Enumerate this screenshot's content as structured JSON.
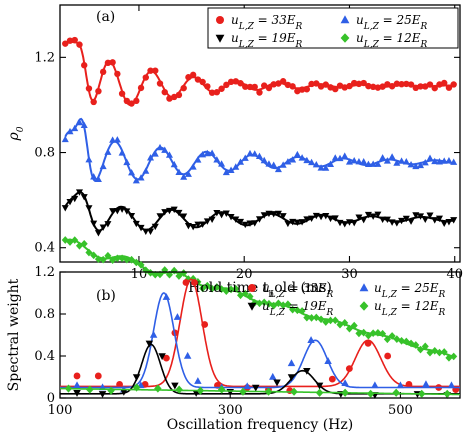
{
  "colors": {
    "red": "#e8201c",
    "blue": "#2f5fe6",
    "black": "#000000",
    "green": "#37c22a"
  },
  "legend_labels": {
    "u33": "u_{L,Z} = 33E_R",
    "u25": "u_{L,Z} = 25E_R",
    "u19": "u_{L,Z} = 19E_R",
    "u12": "u_{L,Z} = 12E_R"
  },
  "chart_data": [
    {
      "type": "scatter",
      "panel_label": "(a)",
      "xlabel": "Hold time t_hold (ms)",
      "ylabel": "ρ_0",
      "xlim": [
        2.5,
        40.5
      ],
      "ylim": [
        0.34,
        1.42
      ],
      "xticks": [
        10,
        20,
        30,
        40
      ],
      "yticks": [
        0.4,
        0.8,
        1.2
      ],
      "ytick_labels": [
        "0.4",
        "0.8",
        "1.2"
      ],
      "legend_position": "top-right",
      "series": [
        {
          "name": "u_{L,Z} = 33E_R",
          "marker": "circle",
          "color": "red",
          "model": {
            "base": 1.08,
            "amp": 0.2,
            "freq": 0.25,
            "phase": 1.2,
            "decay": 0.13,
            "bump": 0.22,
            "bump_x": 4.6,
            "bump_w": 0.8
          }
        },
        {
          "name": "u_{L,Z} = 25E_R",
          "marker": "triangle-up",
          "color": "blue",
          "model": {
            "base": 0.76,
            "amp": 0.14,
            "freq": 0.23,
            "phase": 1.0,
            "decay": 0.08,
            "bump": 0.2,
            "bump_x": 4.7,
            "bump_w": 0.7
          }
        },
        {
          "name": "u_{L,Z} = 19E_R",
          "marker": "triangle-down",
          "color": "black",
          "model": {
            "base": 0.52,
            "amp": 0.08,
            "freq": 0.21,
            "phase": 0.8,
            "decay": 0.06,
            "bump": 0.1,
            "bump_x": 4.8,
            "bump_w": 0.9
          }
        },
        {
          "name": "u_{L,Z} = 12E_R",
          "marker": "diamond",
          "color": "green",
          "model": {
            "base": 0.42,
            "amp": 0.025,
            "freq": 0.2,
            "phase": 0.5,
            "decay": 0.05,
            "bump": 0.0,
            "bump_x": 5,
            "bump_w": 1,
            "slope": -0.0013
          }
        }
      ]
    },
    {
      "type": "scatter",
      "panel_label": "(b)",
      "xlabel": "Oscillation frequency (Hz)",
      "ylabel": "Spectral weight",
      "xlim": [
        100,
        570
      ],
      "ylim": [
        0,
        1.2
      ],
      "xticks": [
        100,
        300,
        500
      ],
      "yticks": [
        0,
        0.4,
        0.8,
        1.2
      ],
      "ytick_labels": [
        "0",
        "0.4",
        "0.8",
        "1.2"
      ],
      "legend_position": "top-right",
      "series": [
        {
          "name": "u_{L,Z} = 33E_R",
          "marker": "circle",
          "color": "red",
          "points": [
            [
              120,
              0.21
            ],
            [
              145,
              0.21
            ],
            [
              170,
              0.13
            ],
            [
              200,
              0.13
            ],
            [
              225,
              0.38
            ],
            [
              235,
              0.62
            ],
            [
              248,
              1.1
            ],
            [
              258,
              1.1
            ],
            [
              270,
              0.7
            ],
            [
              285,
              0.12
            ],
            [
              320,
              0.1
            ],
            [
              345,
              0.08
            ],
            [
              370,
              0.07
            ],
            [
              420,
              0.18
            ],
            [
              440,
              0.28
            ],
            [
              462,
              0.52
            ],
            [
              485,
              0.4
            ],
            [
              510,
              0.13
            ],
            [
              545,
              0.1
            ],
            [
              565,
              0.08
            ]
          ],
          "fit": [
            {
              "a": 1.02,
              "mu": 254,
              "sigma": 13
            },
            {
              "a": 0.44,
              "mu": 462,
              "sigma": 15
            }
          ],
          "fit_base": 0.11
        },
        {
          "name": "u_{L,Z} = 25E_R",
          "marker": "triangle-up",
          "color": "blue",
          "points": [
            [
              120,
              0.12
            ],
            [
              150,
              0.1
            ],
            [
              175,
              0.08
            ],
            [
              195,
              0.12
            ],
            [
              210,
              0.6
            ],
            [
              225,
              0.96
            ],
            [
              238,
              0.77
            ],
            [
              250,
              0.4
            ],
            [
              262,
              0.16
            ],
            [
              290,
              0.1
            ],
            [
              320,
              0.11
            ],
            [
              350,
              0.2
            ],
            [
              372,
              0.33
            ],
            [
              395,
              0.55
            ],
            [
              415,
              0.35
            ],
            [
              435,
              0.14
            ],
            [
              470,
              0.12
            ],
            [
              500,
              0.12
            ],
            [
              530,
              0.13
            ],
            [
              560,
              0.12
            ]
          ],
          "fit": [
            {
              "a": 0.9,
              "mu": 222,
              "sigma": 12
            },
            {
              "a": 0.45,
              "mu": 400,
              "sigma": 14
            }
          ],
          "fit_base": 0.1
        },
        {
          "name": "u_{L,Z} = 19E_R",
          "marker": "triangle-down",
          "color": "black",
          "points": [
            [
              120,
              0.05
            ],
            [
              150,
              0.04
            ],
            [
              175,
              0.06
            ],
            [
              190,
              0.2
            ],
            [
              205,
              0.52
            ],
            [
              220,
              0.4
            ],
            [
              235,
              0.12
            ],
            [
              260,
              0.05
            ],
            [
              300,
              0.06
            ],
            [
              330,
              0.1
            ],
            [
              355,
              0.15
            ],
            [
              372,
              0.2
            ],
            [
              390,
              0.26
            ],
            [
              405,
              0.12
            ],
            [
              430,
              0.04
            ],
            [
              470,
              0.03
            ],
            [
              520,
              0.04
            ],
            [
              555,
              0.03
            ]
          ],
          "fit": [
            {
              "a": 0.47,
              "mu": 207,
              "sigma": 11
            },
            {
              "a": 0.22,
              "mu": 385,
              "sigma": 14
            }
          ],
          "fit_base": 0.04
        },
        {
          "name": "u_{L,Z} = 12E_R",
          "marker": "diamond",
          "color": "green",
          "points": [
            [
              110,
              0.09
            ],
            [
              135,
              0.08
            ],
            [
              160,
              0.07
            ],
            [
              190,
              0.1
            ],
            [
              215,
              0.09
            ],
            [
              240,
              0.08
            ],
            [
              265,
              0.07
            ],
            [
              290,
              0.08
            ],
            [
              315,
              0.06
            ],
            [
              345,
              0.06
            ],
            [
              375,
              0.06
            ],
            [
              405,
              0.05
            ],
            [
              435,
              0.05
            ],
            [
              465,
              0.04
            ],
            [
              495,
              0.05
            ],
            [
              525,
              0.04
            ],
            [
              555,
              0.04
            ]
          ],
          "fit": [],
          "fit_base": 0.09,
          "fit_slope": -0.00012
        }
      ]
    }
  ]
}
